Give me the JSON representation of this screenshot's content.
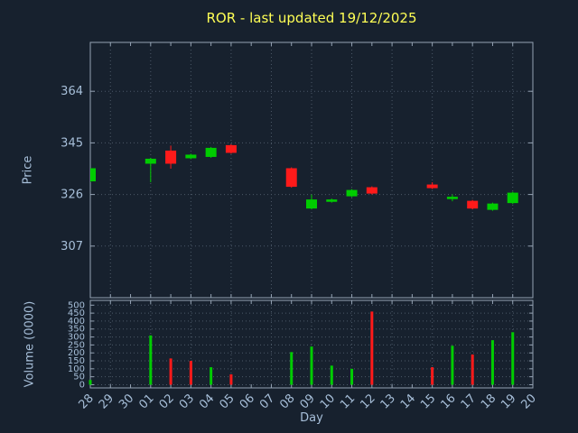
{
  "colors": {
    "background": "#17212e",
    "title": "#ffff55",
    "axis_text": "#a7bfd9",
    "grid": "#4c5968",
    "border": "#95a3b4",
    "up": "#00cc00",
    "down": "#ff1a1a"
  },
  "chart_data": {
    "type": "candlestick",
    "title": "ROR - last updated 19/12/2025",
    "xlabel": "Day",
    "price_ylabel": "Price",
    "volume_ylabel": "Volume (0000)",
    "legend": "none",
    "grid": "dotted",
    "categories": [
      "28",
      "29",
      "30",
      "01",
      "02",
      "03",
      "04",
      "05",
      "06",
      "07",
      "08",
      "09",
      "10",
      "11",
      "12",
      "13",
      "14",
      "15",
      "16",
      "17",
      "18",
      "19",
      "20"
    ],
    "price_ticks": [
      307,
      326,
      345,
      364
    ],
    "price_range": [
      288,
      382
    ],
    "volume_ticks": [
      0,
      50,
      100,
      150,
      200,
      250,
      300,
      350,
      400,
      450,
      500
    ],
    "volume_range": [
      -20,
      530
    ],
    "candles": [
      {
        "day": "28",
        "open": 331.0,
        "high": 335.5,
        "low": 330.5,
        "close": 335.5,
        "dir": "up",
        "volume": 30,
        "vol_dir": "up"
      },
      {
        "day": "01",
        "open": 337.5,
        "high": 339.5,
        "low": 330.5,
        "close": 339.0,
        "dir": "up",
        "volume": 310,
        "vol_dir": "up"
      },
      {
        "day": "02",
        "open": 342.0,
        "high": 344.0,
        "low": 335.5,
        "close": 337.5,
        "dir": "down",
        "volume": 165,
        "vol_dir": "down"
      },
      {
        "day": "03",
        "open": 339.5,
        "high": 341.0,
        "low": 339.0,
        "close": 340.5,
        "dir": "up",
        "volume": 150,
        "vol_dir": "down"
      },
      {
        "day": "04",
        "open": 340.0,
        "high": 343.5,
        "low": 339.5,
        "close": 343.0,
        "dir": "up",
        "volume": 110,
        "vol_dir": "up"
      },
      {
        "day": "05",
        "open": 344.0,
        "high": 344.5,
        "low": 341.0,
        "close": 341.5,
        "dir": "down",
        "volume": 65,
        "vol_dir": "down"
      },
      {
        "day": "08",
        "open": 335.5,
        "high": 336.0,
        "low": 328.5,
        "close": 329.0,
        "dir": "down",
        "volume": 205,
        "vol_dir": "up"
      },
      {
        "day": "09",
        "open": 321.0,
        "high": 326.0,
        "low": 320.5,
        "close": 324.0,
        "dir": "up",
        "volume": 240,
        "vol_dir": "up"
      },
      {
        "day": "10",
        "open": 323.5,
        "high": 324.5,
        "low": 323.0,
        "close": 324.0,
        "dir": "up",
        "volume": 120,
        "vol_dir": "up"
      },
      {
        "day": "11",
        "open": 325.5,
        "high": 328.0,
        "low": 325.0,
        "close": 327.5,
        "dir": "up",
        "volume": 100,
        "vol_dir": "up"
      },
      {
        "day": "12",
        "open": 328.5,
        "high": 329.0,
        "low": 326.0,
        "close": 326.5,
        "dir": "down",
        "volume": 460,
        "vol_dir": "down"
      },
      {
        "day": "15",
        "open": 329.5,
        "high": 330.5,
        "low": 328.0,
        "close": 328.5,
        "dir": "down",
        "volume": 110,
        "vol_dir": "down"
      },
      {
        "day": "16",
        "open": 324.5,
        "high": 326.0,
        "low": 323.5,
        "close": 325.0,
        "dir": "up",
        "volume": 245,
        "vol_dir": "up"
      },
      {
        "day": "17",
        "open": 323.5,
        "high": 324.0,
        "low": 320.5,
        "close": 321.0,
        "dir": "down",
        "volume": 190,
        "vol_dir": "down"
      },
      {
        "day": "18",
        "open": 320.5,
        "high": 323.0,
        "low": 320.0,
        "close": 322.5,
        "dir": "up",
        "volume": 280,
        "vol_dir": "up"
      },
      {
        "day": "19",
        "open": 323.0,
        "high": 327.0,
        "low": 322.5,
        "close": 326.5,
        "dir": "up",
        "volume": 330,
        "vol_dir": "up"
      }
    ]
  }
}
